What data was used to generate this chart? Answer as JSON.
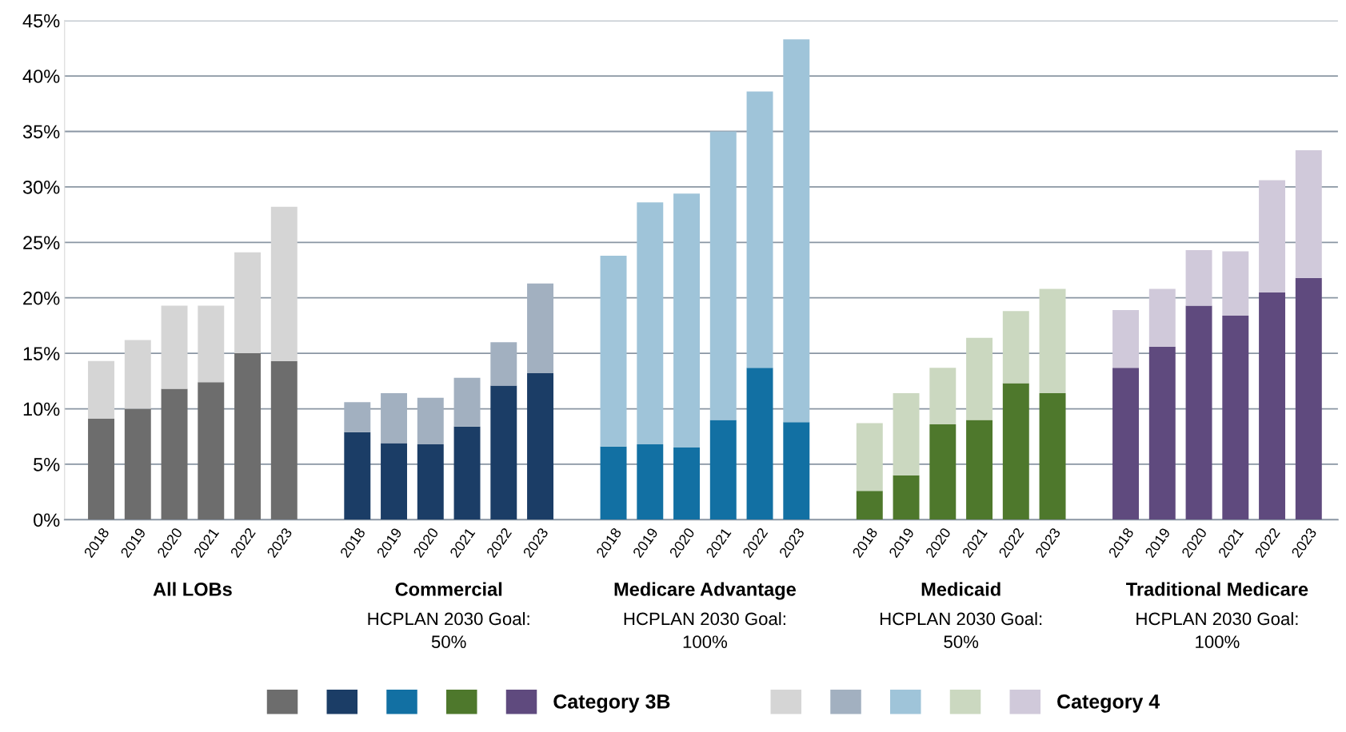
{
  "chart_data": {
    "type": "bar",
    "stacked": true,
    "categories": [
      "2018",
      "2019",
      "2020",
      "2021",
      "2022",
      "2023",
      null,
      "2018",
      "2019",
      "2020",
      "2021",
      "2022",
      "2023",
      null,
      "2018",
      "2019",
      "2020",
      "2021",
      "2022",
      "2023",
      null,
      "2018",
      "2019",
      "2020",
      "2021",
      "2022",
      "2023",
      null,
      "2018",
      "2019",
      "2020",
      "2021",
      "2022",
      "2023"
    ],
    "annotations": [
      "All LOBs",
      "Commercial",
      "Medicare Advantage",
      "Medicaid",
      "Traditional Medicare",
      "HCPLAN 2030 Goal:\n50%",
      "HCPLAN 2030 Goal:\n100%",
      "HCPLAN 2030 Goal:\n50%",
      "HCPLAN 2030 Goal:\n100%"
    ],
    "ylim": [
      0,
      45
    ],
    "yticks": [
      {
        "value": 0,
        "label": "0%"
      },
      {
        "value": 5,
        "label": "5%"
      },
      {
        "value": 10,
        "label": "10%"
      },
      {
        "value": 15,
        "label": "15%"
      },
      {
        "value": 20,
        "label": "20%"
      },
      {
        "value": 25,
        "label": "25%"
      },
      {
        "value": 30,
        "label": "30%"
      },
      {
        "value": 35,
        "label": "35%"
      },
      {
        "value": 40,
        "label": "40%"
      },
      {
        "value": 45,
        "label": "45%"
      }
    ],
    "grid": "y",
    "legend": "bottom",
    "series": [
      {
        "name": "Category 3B",
        "values": [
          9.1,
          10.0,
          11.8,
          12.4,
          15.0,
          14.3,
          null,
          7.9,
          6.9,
          6.8,
          8.4,
          12.1,
          13.2,
          null,
          6.6,
          6.8,
          6.5,
          9.0,
          13.7,
          8.8,
          null,
          2.6,
          4.0,
          8.6,
          9.0,
          12.3,
          11.4,
          null,
          13.7,
          15.6,
          19.3,
          18.4,
          20.5,
          21.8
        ],
        "colors": [
          "#6d6d6d",
          "#6d6d6d",
          "#6d6d6d",
          "#6d6d6d",
          "#6d6d6d",
          "#6d6d6d",
          null,
          "#1b3d66",
          "#1b3d66",
          "#1b3d66",
          "#1b3d66",
          "#1b3d66",
          "#1b3d66",
          null,
          "#1270a3",
          "#1270a3",
          "#1270a3",
          "#1270a3",
          "#1270a3",
          "#1270a3",
          null,
          "#4e782c",
          "#4e782c",
          "#4e782c",
          "#4e782c",
          "#4e782c",
          "#4e782c",
          null,
          "#5f4a7e",
          "#5f4a7e",
          "#5f4a7e",
          "#5f4a7e",
          "#5f4a7e",
          "#5f4a7e"
        ]
      },
      {
        "name": "Category 4",
        "values": [
          5.2,
          6.2,
          7.5,
          6.9,
          9.1,
          13.9,
          null,
          2.7,
          4.5,
          4.2,
          4.4,
          3.9,
          8.1,
          null,
          17.2,
          21.8,
          22.9,
          26.0,
          24.9,
          34.5,
          null,
          6.1,
          7.4,
          5.1,
          7.4,
          6.5,
          9.4,
          null,
          5.2,
          5.2,
          5.0,
          5.8,
          10.1,
          11.5
        ],
        "colors": [
          "#d5d5d5",
          "#d5d5d5",
          "#d5d5d5",
          "#d5d5d5",
          "#d5d5d5",
          "#d5d5d5",
          null,
          "#a2b0c0",
          "#a2b0c0",
          "#a2b0c0",
          "#a2b0c0",
          "#a2b0c0",
          "#a2b0c0",
          null,
          "#9fc4d9",
          "#9fc4d9",
          "#9fc4d9",
          "#9fc4d9",
          "#9fc4d9",
          "#9fc4d9",
          null,
          "#cbd8c0",
          "#cbd8c0",
          "#cbd8c0",
          "#cbd8c0",
          "#cbd8c0",
          "#cbd8c0",
          null,
          "#d0c9da",
          "#d0c9da",
          "#d0c9da",
          "#d0c9da",
          "#d0c9da",
          "#d0c9da"
        ]
      }
    ]
  }
}
